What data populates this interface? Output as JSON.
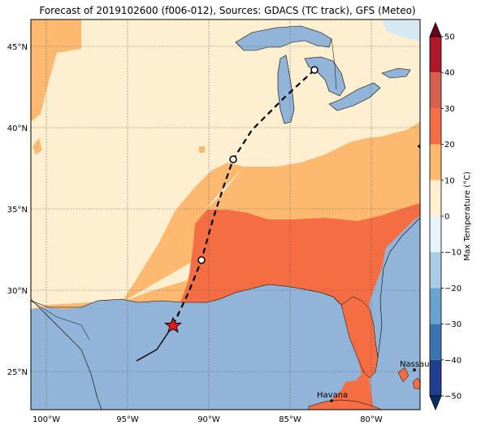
{
  "title": "Forecast of 2019102600 (f006-012), Sources: GDACS (TC track), GFS (Meteo)",
  "map": {
    "lon_ticks": [
      "100°W",
      "95°W",
      "90°W",
      "85°W",
      "80°W"
    ],
    "lat_ticks": [
      "45°N",
      "40°N",
      "35°N",
      "30°N",
      "25°N"
    ],
    "cities": [
      {
        "name": "Nassau"
      },
      {
        "name": "Havana"
      }
    ]
  },
  "colorbar": {
    "label": "Max Temperature (°C)",
    "ticks": [
      "50",
      "40",
      "30",
      "20",
      "10",
      "0",
      "−10",
      "−20",
      "−30",
      "−40",
      "−50"
    ],
    "colors": [
      "#67001f",
      "#b2182b",
      "#d6604d",
      "#f4a582",
      "#fddbc7",
      "#f7f7f7",
      "#d1e5f0",
      "#92c5de",
      "#4393c3",
      "#2166ac",
      "#053061"
    ]
  },
  "colors": {
    "water": "#92b4d8",
    "band_10_20": "#fdb96f",
    "band_0_10": "#fdefd0",
    "band_20_30": "#f46d43"
  }
}
